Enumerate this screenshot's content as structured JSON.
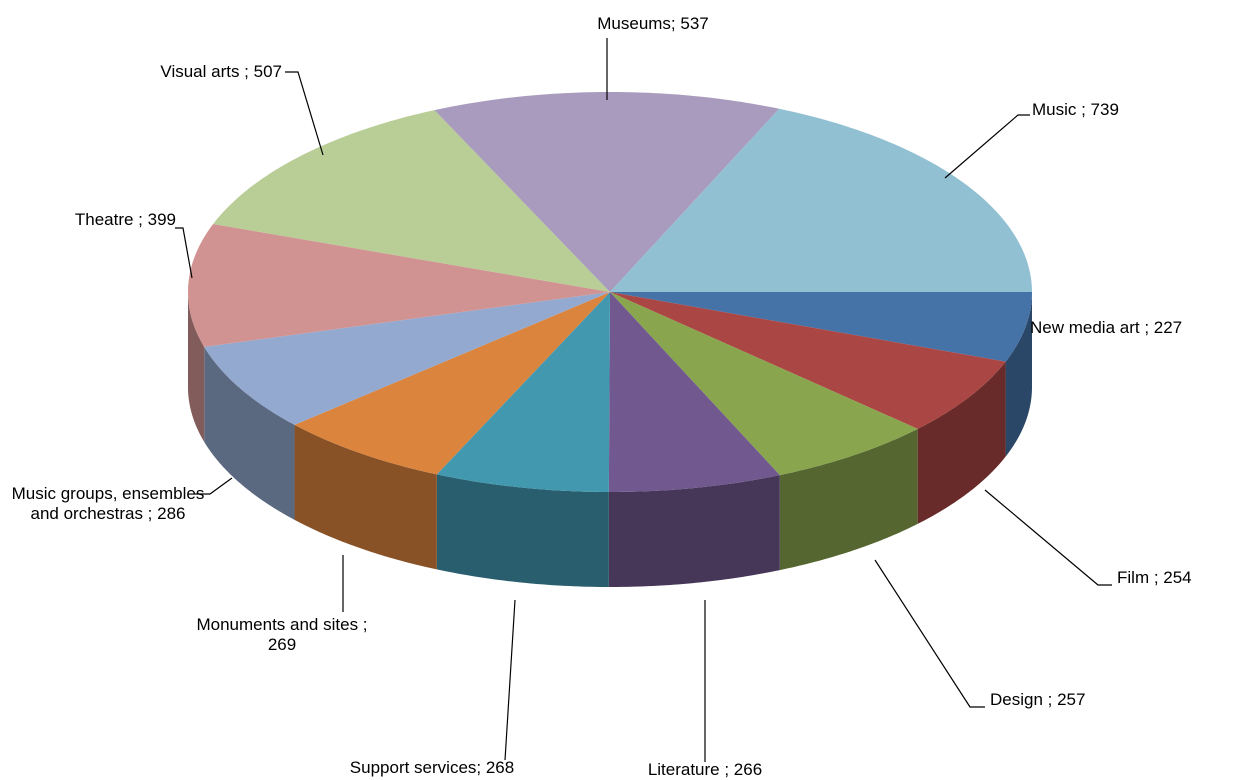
{
  "chart_data": {
    "type": "pie3d",
    "categories": [
      "New media art",
      "Film",
      "Design",
      "Literature",
      "Support services",
      "Monuments and sites",
      "Music groups, ensembles and orchestras",
      "Theatre",
      "Visual arts",
      "Museums",
      "Music"
    ],
    "values": [
      227,
      254,
      257,
      266,
      268,
      269,
      286,
      399,
      507,
      537,
      739
    ],
    "value_labels": [
      "New media art ; 227",
      "Film ; 254",
      "Design ; 257",
      "Literature ; 266",
      "Support services; 268",
      "Monuments and sites  ; 269",
      "Music groups, ensembles and orchestras  ; 286",
      "Theatre  ; 399",
      "Visual arts ; 507",
      "Museums; 537",
      "Music ; 739"
    ],
    "colors": [
      "#4572a7",
      "#aa4643",
      "#89a54e",
      "#71588f",
      "#4198af",
      "#db843d",
      "#93a9cf",
      "#d19392",
      "#b9cd96",
      "#a99bbd",
      "#92c0d3"
    ]
  }
}
